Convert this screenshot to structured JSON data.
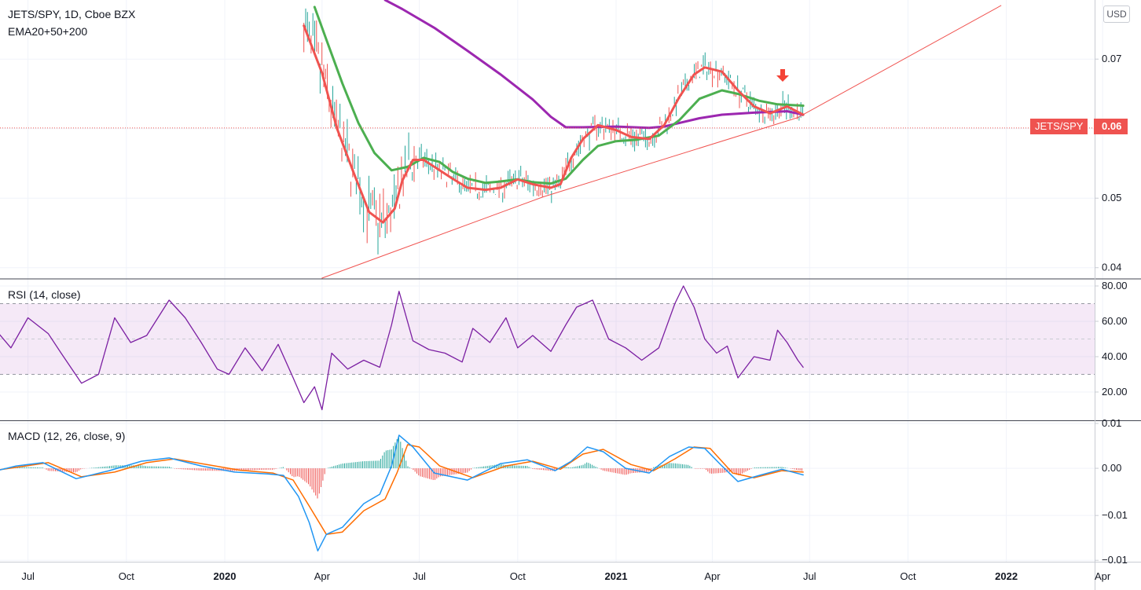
{
  "header": {
    "symbol_line": "JETS/SPY, 1D, Cboe BZX",
    "indicator_line": "EMA20+50+200",
    "currency_button": "USD"
  },
  "price_label": {
    "symbol": "JETS/SPY",
    "value": "0.06"
  },
  "chart_data": [
    {
      "type": "line",
      "name": "price",
      "title": "JETS/SPY, 1D, Cboe BZX",
      "y_ticks": [
        "0.07",
        "0.06",
        "0.05",
        "0.04"
      ],
      "x_ticks": [
        "Jul",
        "Oct",
        "2020",
        "Apr",
        "Jul",
        "Oct",
        "2021",
        "Apr",
        "Jul",
        "Oct",
        "2022",
        "Apr"
      ],
      "ylim": [
        0.0385,
        0.0785
      ],
      "series": [
        {
          "name": "EMA20",
          "color": "#f05350",
          "points": [
            [
              "2020-03-15",
              0.0748
            ],
            [
              "2020-04-01",
              0.068
            ],
            [
              "2020-04-15",
              0.06
            ],
            [
              "2020-05-01",
              0.0535
            ],
            [
              "2020-05-15",
              0.048
            ],
            [
              "2020-05-28",
              0.0465
            ],
            [
              "2020-06-08",
              0.0485
            ],
            [
              "2020-06-15",
              0.0525
            ],
            [
              "2020-06-25",
              0.0555
            ],
            [
              "2020-07-05",
              0.0555
            ],
            [
              "2020-07-20",
              0.054
            ],
            [
              "2020-08-01",
              0.0528
            ],
            [
              "2020-08-15",
              0.0515
            ],
            [
              "2020-09-01",
              0.0512
            ],
            [
              "2020-09-15",
              0.0515
            ],
            [
              "2020-10-01",
              0.0527
            ],
            [
              "2020-10-15",
              0.052
            ],
            [
              "2020-11-01",
              0.0515
            ],
            [
              "2020-11-10",
              0.052
            ],
            [
              "2020-11-20",
              0.0558
            ],
            [
              "2020-12-01",
              0.0585
            ],
            [
              "2020-12-15",
              0.0605
            ],
            [
              "2021-01-01",
              0.0598
            ],
            [
              "2021-01-15",
              0.0588
            ],
            [
              "2021-02-01",
              0.0585
            ],
            [
              "2021-02-15",
              0.0605
            ],
            [
              "2021-03-01",
              0.0645
            ],
            [
              "2021-03-15",
              0.0678
            ],
            [
              "2021-03-25",
              0.0688
            ],
            [
              "2021-04-10",
              0.0682
            ],
            [
              "2021-04-25",
              0.0655
            ],
            [
              "2021-05-10",
              0.0632
            ],
            [
              "2021-05-25",
              0.0622
            ],
            [
              "2021-06-10",
              0.0632
            ],
            [
              "2021-06-25",
              0.062
            ]
          ]
        },
        {
          "name": "EMA50",
          "color": "#4caf50",
          "points": [
            [
              "2020-03-25",
              0.0775
            ],
            [
              "2020-04-05",
              0.0728
            ],
            [
              "2020-04-20",
              0.0665
            ],
            [
              "2020-05-05",
              0.0608
            ],
            [
              "2020-05-20",
              0.0565
            ],
            [
              "2020-06-05",
              0.054
            ],
            [
              "2020-06-20",
              0.0545
            ],
            [
              "2020-07-05",
              0.0558
            ],
            [
              "2020-07-20",
              0.0552
            ],
            [
              "2020-08-01",
              0.0538
            ],
            [
              "2020-08-15",
              0.0528
            ],
            [
              "2020-09-01",
              0.0522
            ],
            [
              "2020-09-15",
              0.0524
            ],
            [
              "2020-10-01",
              0.0527
            ],
            [
              "2020-10-15",
              0.0523
            ],
            [
              "2020-11-01",
              0.0521
            ],
            [
              "2020-11-15",
              0.0528
            ],
            [
              "2020-12-01",
              0.0555
            ],
            [
              "2020-12-15",
              0.0575
            ],
            [
              "2021-01-01",
              0.0582
            ],
            [
              "2021-01-20",
              0.0584
            ],
            [
              "2021-02-10",
              0.059
            ],
            [
              "2021-03-01",
              0.0612
            ],
            [
              "2021-03-20",
              0.0643
            ],
            [
              "2021-04-10",
              0.0655
            ],
            [
              "2021-04-25",
              0.065
            ],
            [
              "2021-05-15",
              0.064
            ],
            [
              "2021-06-01",
              0.0635
            ],
            [
              "2021-06-25",
              0.0633
            ]
          ]
        },
        {
          "name": "EMA200",
          "color": "#9c27b0",
          "points": [
            [
              "2020-05-30",
              0.0785
            ],
            [
              "2020-06-15",
              0.0772
            ],
            [
              "2020-07-15",
              0.0745
            ],
            [
              "2020-08-15",
              0.0712
            ],
            [
              "2020-09-15",
              0.0678
            ],
            [
              "2020-10-15",
              0.0642
            ],
            [
              "2020-11-01",
              0.0617
            ],
            [
              "2020-11-15",
              0.0602
            ],
            [
              "2020-12-01",
              0.0602
            ],
            [
              "2021-01-01",
              0.0603
            ],
            [
              "2021-02-01",
              0.0601
            ],
            [
              "2021-02-15",
              0.0603
            ],
            [
              "2021-03-01",
              0.0608
            ],
            [
              "2021-03-20",
              0.0615
            ],
            [
              "2021-04-10",
              0.062
            ],
            [
              "2021-05-10",
              0.0623
            ],
            [
              "2021-06-10",
              0.0625
            ],
            [
              "2021-06-25",
              0.062
            ]
          ]
        },
        {
          "name": "Trendline",
          "color": "#f05350",
          "points": [
            [
              "2020-04-01",
              0.0385
            ],
            [
              "2020-10-25",
              0.0502
            ],
            [
              "2021-06-20",
              0.0616
            ],
            [
              "2021-12-27",
              0.0777
            ]
          ]
        }
      ],
      "last_price": 0.0601
    },
    {
      "type": "line",
      "name": "rsi",
      "title": "RSI (14, close)",
      "y_ticks": [
        "80.00",
        "60.00",
        "40.00",
        "20.00"
      ],
      "ylim": [
        4,
        84
      ],
      "band": [
        30,
        70
      ],
      "series": [
        {
          "name": "RSI",
          "color": "#7b1fa2",
          "points": [
            [
              "2019-05-20",
              33
            ],
            [
              "2019-06-01",
              55
            ],
            [
              "2019-06-15",
              45
            ],
            [
              "2019-07-01",
              62
            ],
            [
              "2019-07-20",
              53
            ],
            [
              "2019-08-01",
              42
            ],
            [
              "2019-08-20",
              25
            ],
            [
              "2019-09-05",
              30
            ],
            [
              "2019-09-20",
              62
            ],
            [
              "2019-10-05",
              48
            ],
            [
              "2019-10-20",
              52
            ],
            [
              "2019-11-10",
              72
            ],
            [
              "2019-11-25",
              62
            ],
            [
              "2019-12-10",
              48
            ],
            [
              "2019-12-25",
              33
            ],
            [
              "2020-01-05",
              30
            ],
            [
              "2020-01-20",
              45
            ],
            [
              "2020-02-05",
              32
            ],
            [
              "2020-02-20",
              47
            ],
            [
              "2020-03-05",
              28
            ],
            [
              "2020-03-15",
              14
            ],
            [
              "2020-03-25",
              23
            ],
            [
              "2020-04-01",
              10
            ],
            [
              "2020-04-10",
              42
            ],
            [
              "2020-04-25",
              33
            ],
            [
              "2020-05-10",
              38
            ],
            [
              "2020-05-25",
              34
            ],
            [
              "2020-06-05",
              58
            ],
            [
              "2020-06-12",
              77
            ],
            [
              "2020-06-25",
              49
            ],
            [
              "2020-07-10",
              44
            ],
            [
              "2020-07-25",
              42
            ],
            [
              "2020-08-10",
              37
            ],
            [
              "2020-08-20",
              56
            ],
            [
              "2020-09-05",
              48
            ],
            [
              "2020-09-20",
              62
            ],
            [
              "2020-10-01",
              45
            ],
            [
              "2020-10-15",
              52
            ],
            [
              "2020-11-01",
              43
            ],
            [
              "2020-11-15",
              58
            ],
            [
              "2020-11-25",
              68
            ],
            [
              "2020-12-10",
              72
            ],
            [
              "2020-12-25",
              50
            ],
            [
              "2021-01-10",
              45
            ],
            [
              "2021-01-25",
              38
            ],
            [
              "2021-02-10",
              45
            ],
            [
              "2021-02-25",
              70
            ],
            [
              "2021-03-05",
              80
            ],
            [
              "2021-03-15",
              68
            ],
            [
              "2021-03-25",
              50
            ],
            [
              "2021-04-05",
              42
            ],
            [
              "2021-04-15",
              46
            ],
            [
              "2021-04-25",
              28
            ],
            [
              "2021-05-10",
              40
            ],
            [
              "2021-05-25",
              38
            ],
            [
              "2021-06-01",
              55
            ],
            [
              "2021-06-10",
              48
            ],
            [
              "2021-06-20",
              38
            ],
            [
              "2021-06-25",
              34
            ]
          ]
        }
      ]
    },
    {
      "type": "line",
      "name": "macd",
      "title": "MACD (12, 26, close, 9)",
      "y_ticks": [
        "0.01",
        "0.00",
        "−0.01",
        "−0.01"
      ],
      "ylim": [
        -0.0198,
        0.01
      ],
      "series": [
        {
          "name": "MACD",
          "color": "#2196f3",
          "points": [
            [
              "2019-05-20",
              -0.0012
            ],
            [
              "2019-06-20",
              0.0005
            ],
            [
              "2019-07-15",
              0.0012
            ],
            [
              "2019-08-15",
              -0.0022
            ],
            [
              "2019-09-15",
              -0.0005
            ],
            [
              "2019-10-15",
              0.0015
            ],
            [
              "2019-11-10",
              0.0022
            ],
            [
              "2019-12-10",
              0.0005
            ],
            [
              "2020-01-10",
              -0.0008
            ],
            [
              "2020-02-10",
              -0.0012
            ],
            [
              "2020-02-25",
              -0.0015
            ],
            [
              "2020-03-10",
              -0.006
            ],
            [
              "2020-03-20",
              -0.0115
            ],
            [
              "2020-03-28",
              -0.0175
            ],
            [
              "2020-04-05",
              -0.014
            ],
            [
              "2020-04-20",
              -0.0125
            ],
            [
              "2020-05-10",
              -0.0075
            ],
            [
              "2020-05-25",
              -0.0055
            ],
            [
              "2020-06-05",
              0.0005
            ],
            [
              "2020-06-12",
              0.007
            ],
            [
              "2020-06-25",
              0.0045
            ],
            [
              "2020-07-15",
              -0.001
            ],
            [
              "2020-08-15",
              -0.0025
            ],
            [
              "2020-09-15",
              0.001
            ],
            [
              "2020-10-10",
              0.0018
            ],
            [
              "2020-11-05",
              -0.0005
            ],
            [
              "2020-11-20",
              0.0015
            ],
            [
              "2020-12-05",
              0.0045
            ],
            [
              "2020-12-20",
              0.0035
            ],
            [
              "2021-01-10",
              0.0
            ],
            [
              "2021-02-01",
              -0.001
            ],
            [
              "2021-02-20",
              0.0025
            ],
            [
              "2021-03-10",
              0.0045
            ],
            [
              "2021-03-25",
              0.0042
            ],
            [
              "2021-04-10",
              0.0005
            ],
            [
              "2021-04-25",
              -0.0028
            ],
            [
              "2021-05-15",
              -0.0015
            ],
            [
              "2021-06-05",
              -0.0002
            ],
            [
              "2021-06-25",
              -0.0014
            ]
          ]
        },
        {
          "name": "Signal",
          "color": "#ff6d00",
          "points": [
            [
              "2019-05-20",
              -0.0008
            ],
            [
              "2019-06-20",
              0.0002
            ],
            [
              "2019-07-20",
              0.0012
            ],
            [
              "2019-08-20",
              -0.0018
            ],
            [
              "2019-09-20",
              -0.0008
            ],
            [
              "2019-10-20",
              0.0012
            ],
            [
              "2019-11-15",
              0.002
            ],
            [
              "2019-12-15",
              0.0008
            ],
            [
              "2020-01-15",
              -0.0004
            ],
            [
              "2020-02-15",
              -0.001
            ],
            [
              "2020-03-05",
              -0.0025
            ],
            [
              "2020-03-20",
              -0.008
            ],
            [
              "2020-04-05",
              -0.014
            ],
            [
              "2020-04-20",
              -0.0135
            ],
            [
              "2020-05-10",
              -0.009
            ],
            [
              "2020-05-30",
              -0.0065
            ],
            [
              "2020-06-10",
              -0.001
            ],
            [
              "2020-06-20",
              0.005
            ],
            [
              "2020-07-01",
              0.0045
            ],
            [
              "2020-07-20",
              0.0005
            ],
            [
              "2020-08-20",
              -0.002
            ],
            [
              "2020-09-20",
              0.0005
            ],
            [
              "2020-10-15",
              0.0015
            ],
            [
              "2020-11-10",
              -0.0002
            ],
            [
              "2020-12-01",
              0.003
            ],
            [
              "2020-12-20",
              0.004
            ],
            [
              "2021-01-15",
              0.0008
            ],
            [
              "2021-02-05",
              -0.0005
            ],
            [
              "2021-02-25",
              0.002
            ],
            [
              "2021-03-15",
              0.0045
            ],
            [
              "2021-03-30",
              0.0042
            ],
            [
              "2021-04-20",
              -0.001
            ],
            [
              "2021-05-10",
              -0.002
            ],
            [
              "2021-06-05",
              -0.0005
            ],
            [
              "2021-06-25",
              -0.0008
            ]
          ]
        }
      ]
    }
  ]
}
